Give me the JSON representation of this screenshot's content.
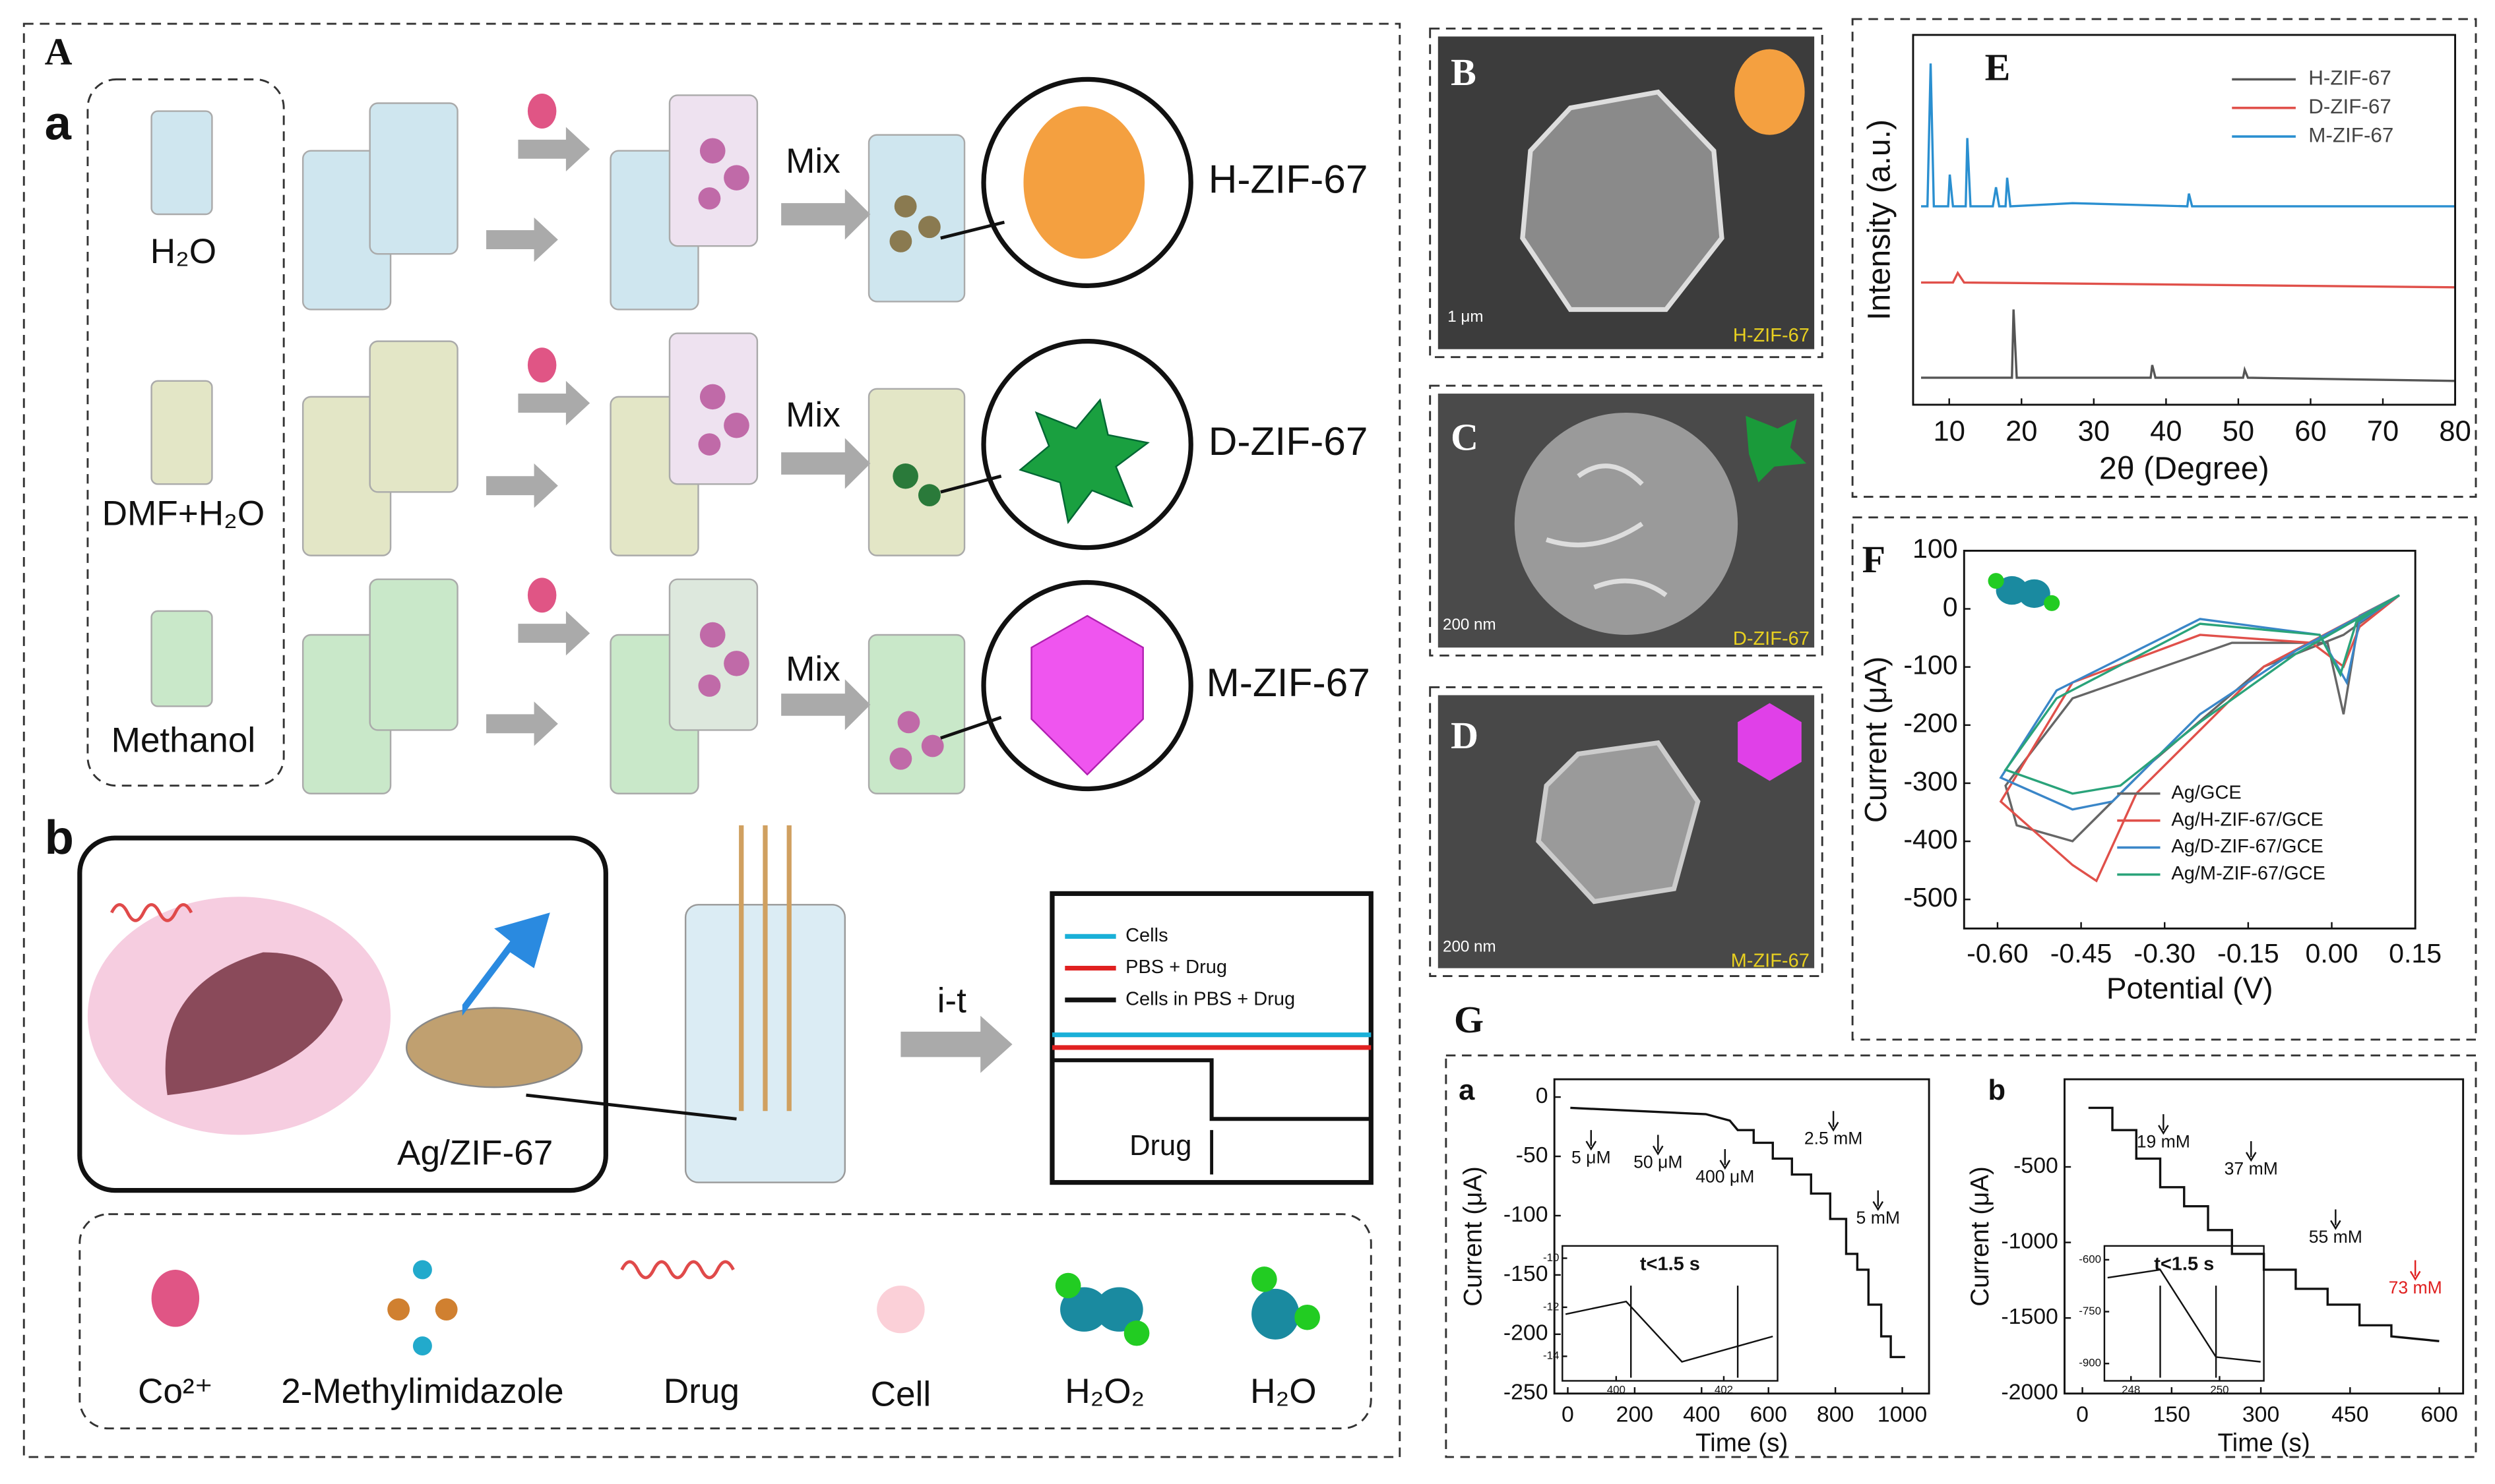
{
  "figure": {
    "panel_A": {
      "label": "A",
      "part_a": "a",
      "part_b": "b",
      "solvents": [
        "H₂O",
        "DMF+H₂O",
        "Methanol"
      ],
      "mix": [
        "Mix",
        "Mix",
        "Mix"
      ],
      "products": [
        "H-ZIF-67",
        "D-ZIF-67",
        "M-ZIF-67"
      ],
      "electrode": "Ag/ZIF-67",
      "method": "i-t",
      "legend": [
        {
          "name": "Cells",
          "color": "#1ab0d8"
        },
        {
          "name": "PBS + Drug",
          "color": "#e02020"
        },
        {
          "name": "Cells in PBS + Drug",
          "color": "#111111"
        }
      ],
      "drug_arrow": "Drug",
      "key": [
        "Co²⁺",
        "2-Methylimidazole",
        "Drug",
        "Cell",
        "H₂O₂",
        "H₂O"
      ]
    },
    "sem": [
      {
        "label": "B",
        "scale": "1 μm",
        "name": "H-ZIF-67"
      },
      {
        "label": "C",
        "scale": "200 nm",
        "name": "D-ZIF-67"
      },
      {
        "label": "D",
        "scale": "200 nm",
        "name": "M-ZIF-67"
      }
    ],
    "panel_E": {
      "label": "E",
      "y_label": "Intensity (a.u.)",
      "x_label": "2θ (Degree)",
      "xlim": [
        5,
        80
      ],
      "xticks": [
        10,
        20,
        30,
        40,
        50,
        60,
        70,
        80
      ],
      "series": [
        {
          "name": "H-ZIF-67",
          "color": "#555555"
        },
        {
          "name": "D-ZIF-67",
          "color": "#e0504a"
        },
        {
          "name": "M-ZIF-67",
          "color": "#2a8fd0"
        }
      ]
    },
    "panel_F": {
      "label": "F",
      "y_label": "Current (μA)",
      "x_label": "Potential (V)",
      "xlim": [
        -0.66,
        0.15
      ],
      "xticks": [
        {
          "value": -0.6,
          "label": "-0.60"
        },
        {
          "value": -0.45,
          "label": "-0.45"
        },
        {
          "value": -0.3,
          "label": "-0.30"
        },
        {
          "value": -0.15,
          "label": "-0.15"
        },
        {
          "value": 0,
          "label": "0.00"
        },
        0.15
      ],
      "ylim": [
        -550,
        100
      ],
      "yticks": [
        100,
        0,
        -100,
        -200,
        -300,
        -400,
        -500
      ],
      "series": [
        {
          "name": "Ag/GCE",
          "color": "#666666"
        },
        {
          "name": "Ag/H-ZIF-67/GCE",
          "color": "#e0504a"
        },
        {
          "name": "Ag/D-ZIF-67/GCE",
          "color": "#3a86c8"
        },
        {
          "name": "Ag/M-ZIF-67/GCE",
          "color": "#2aa37a"
        }
      ]
    },
    "panel_G": {
      "label": "G",
      "plots": [
        {
          "label": "a",
          "x_label": "Time (s)",
          "y_label": "Current (μA)",
          "xlim": [
            -40,
            1080
          ],
          "xticks": [
            0,
            200,
            400,
            600,
            800,
            1000
          ],
          "ylim": [
            -250,
            15
          ],
          "yticks": [
            0,
            -50,
            -100,
            -150,
            -200,
            -250
          ],
          "annotations": [
            "5 μM",
            "50 μM",
            "400 μM",
            "2.5 mM",
            "5 mM"
          ],
          "inset": {
            "text": "t<1.5 s",
            "xlim": [
              399,
              403
            ],
            "xticks": [
              400,
              402
            ],
            "ylim": [
              -15,
              -9.5
            ],
            "yticks": [
              -10,
              -12,
              -14
            ]
          }
        },
        {
          "label": "b",
          "x_label": "Time (s)",
          "y_label": "Current (μA)",
          "xlim": [
            -30,
            640
          ],
          "xticks": [
            0,
            150,
            300,
            450,
            600
          ],
          "ylim": [
            -2000,
            80
          ],
          "yticks": [
            -500,
            -1000,
            -1500,
            -2000
          ],
          "annotations": [
            "19 mM",
            "37 mM",
            "55 mM",
            "73 mM"
          ],
          "inset": {
            "text": "t<1.5 s",
            "xlim": [
              247.4,
              251
            ],
            "xticks": [
              248,
              250
            ],
            "ylim": [
              -950,
              -560
            ],
            "yticks": [
              -600,
              -750,
              -900
            ]
          }
        }
      ]
    }
  }
}
